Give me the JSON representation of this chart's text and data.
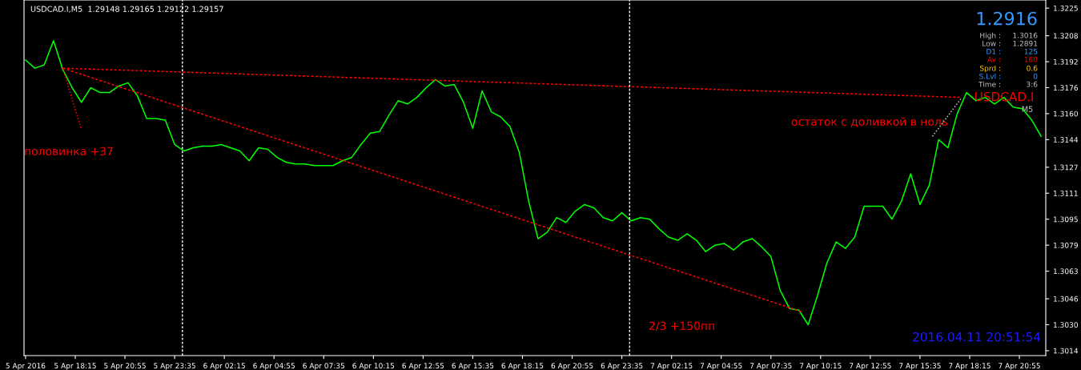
{
  "chart_data": {
    "type": "line",
    "title": "USDCAD.I,M5  1.29148 1.29165 1.29122 1.29157",
    "x": [
      "2016-04-05T15:35",
      "2016-04-05T16:05",
      "2016-04-05T16:35",
      "2016-04-05T17:05",
      "2016-04-05T17:35",
      "2016-04-05T18:05",
      "2016-04-05T18:35",
      "2016-04-05T19:05",
      "2016-04-05T19:35",
      "2016-04-05T20:05",
      "2016-04-05T20:35",
      "2016-04-05T21:05",
      "2016-04-05T21:35",
      "2016-04-05T22:05",
      "2016-04-05T22:35",
      "2016-04-05T23:05",
      "2016-04-05T23:35",
      "2016-04-06T00:05",
      "2016-04-06T00:35",
      "2016-04-06T01:05",
      "2016-04-06T01:35",
      "2016-04-06T02:05",
      "2016-04-06T02:35",
      "2016-04-06T03:05",
      "2016-04-06T03:35",
      "2016-04-06T04:05",
      "2016-04-06T04:35",
      "2016-04-06T05:05",
      "2016-04-06T05:35",
      "2016-04-06T06:05",
      "2016-04-06T06:35",
      "2016-04-06T07:05",
      "2016-04-06T07:35",
      "2016-04-06T08:05",
      "2016-04-06T08:35",
      "2016-04-06T09:05",
      "2016-04-06T09:35",
      "2016-04-06T10:05",
      "2016-04-06T10:35",
      "2016-04-06T11:05",
      "2016-04-06T11:35",
      "2016-04-06T12:05",
      "2016-04-06T12:35",
      "2016-04-06T13:05",
      "2016-04-06T13:35",
      "2016-04-06T14:05",
      "2016-04-06T14:35",
      "2016-04-06T15:05",
      "2016-04-06T15:35",
      "2016-04-06T16:05",
      "2016-04-06T16:35",
      "2016-04-06T17:05",
      "2016-04-06T17:35",
      "2016-04-06T18:05",
      "2016-04-06T18:35",
      "2016-04-06T19:05",
      "2016-04-06T19:35",
      "2016-04-06T20:05",
      "2016-04-06T20:35",
      "2016-04-06T21:05",
      "2016-04-06T21:35",
      "2016-04-06T22:05",
      "2016-04-06T22:35",
      "2016-04-06T23:05",
      "2016-04-06T23:35",
      "2016-04-07T00:05",
      "2016-04-07T00:35",
      "2016-04-07T01:05",
      "2016-04-07T01:35",
      "2016-04-07T02:05",
      "2016-04-07T02:35",
      "2016-04-07T03:05",
      "2016-04-07T03:35",
      "2016-04-07T04:05",
      "2016-04-07T04:35",
      "2016-04-07T05:05",
      "2016-04-07T05:35",
      "2016-04-07T06:05",
      "2016-04-07T06:35",
      "2016-04-07T07:05",
      "2016-04-07T07:35",
      "2016-04-07T08:05",
      "2016-04-07T08:35",
      "2016-04-07T09:05",
      "2016-04-07T09:35",
      "2016-04-07T10:05",
      "2016-04-07T10:35",
      "2016-04-07T11:05",
      "2016-04-07T11:35",
      "2016-04-07T12:05",
      "2016-04-07T12:35",
      "2016-04-07T13:05",
      "2016-04-07T13:35",
      "2016-04-07T14:05",
      "2016-04-07T14:35",
      "2016-04-07T15:05",
      "2016-04-07T15:35",
      "2016-04-07T16:05",
      "2016-04-07T16:35",
      "2016-04-07T17:05",
      "2016-04-07T17:35",
      "2016-04-07T18:05",
      "2016-04-07T18:35",
      "2016-04-07T19:05",
      "2016-04-07T19:35",
      "2016-04-07T20:05",
      "2016-04-07T20:35",
      "2016-04-07T21:05",
      "2016-04-07T21:35",
      "2016-04-07T22:05"
    ],
    "series": [
      {
        "color": "#00ff00",
        "values": [
          1.3193,
          1.3188,
          1.319,
          1.3205,
          1.3187,
          1.3176,
          1.3167,
          1.3176,
          1.3173,
          1.3173,
          1.3177,
          1.3179,
          1.3171,
          1.3157,
          1.3157,
          1.3156,
          1.3141,
          1.3137,
          1.3139,
          1.314,
          1.314,
          1.3141,
          1.3139,
          1.3137,
          1.3131,
          1.3139,
          1.3138,
          1.3133,
          1.313,
          1.3129,
          1.3129,
          1.3128,
          1.3128,
          1.3128,
          1.3131,
          1.3133,
          1.3141,
          1.3148,
          1.3149,
          1.3159,
          1.3168,
          1.3166,
          1.317,
          1.3176,
          1.3181,
          1.3177,
          1.3178,
          1.3167,
          1.3151,
          1.3174,
          1.3161,
          1.3158,
          1.3152,
          1.3136,
          1.3106,
          1.3083,
          1.3087,
          1.3096,
          1.3093,
          1.31,
          1.3104,
          1.3102,
          1.3096,
          1.3094,
          1.3099,
          1.3094,
          1.3096,
          1.3095,
          1.3089,
          1.3084,
          1.3082,
          1.3086,
          1.3082,
          1.3075,
          1.3079,
          1.308,
          1.3076,
          1.3081,
          1.3083,
          1.3078,
          1.3072,
          1.3051,
          1.304,
          1.3039,
          1.303,
          1.3048,
          1.3068,
          1.3081,
          1.3077,
          1.3084,
          1.3103,
          1.3103,
          1.3103,
          1.3095,
          1.3106,
          1.3123,
          1.3104,
          1.3116,
          1.3144,
          1.3139,
          1.316,
          1.3173,
          1.3168,
          1.317,
          1.3166,
          1.317,
          1.3164,
          1.3163,
          1.3156,
          1.3146
        ]
      },
      {
        "type": "line",
        "color": "#ff0000",
        "line_style": "dashed",
        "x": [
          "2016-04-05T17:35",
          "2016-04-07T17:50"
        ],
        "values": [
          1.3188,
          1.317
        ]
      },
      {
        "type": "line",
        "color": "#ff0000",
        "line_style": "dashed",
        "x": [
          "2016-04-05T17:35",
          "2016-04-07T09:15"
        ],
        "values": [
          1.3188,
          1.3038
        ]
      },
      {
        "type": "line",
        "color": "#ff0000",
        "line_style": "dotted",
        "x": [
          "2016-04-05T17:35",
          "2016-04-05T18:35"
        ],
        "values": [
          1.3188,
          1.315
        ]
      },
      {
        "type": "line",
        "color": "#c0c0c0",
        "line_style": "dotted",
        "x": [
          "2016-04-07T16:15",
          "2016-04-07T17:50"
        ],
        "values": [
          1.3146,
          1.317
        ]
      }
    ],
    "xlim": [
      "2016-04-05T15:30",
      "2016-04-07T22:20"
    ],
    "xticks": [
      {
        "value": "2016-04-05T15:35",
        "label": "5 Apr 2016"
      },
      {
        "value": "2016-04-05T18:15",
        "label": "5 Apr 18:15"
      },
      {
        "value": "2016-04-05T20:55",
        "label": "5 Apr 20:55"
      },
      {
        "value": "2016-04-05T23:35",
        "label": "5 Apr 23:35"
      },
      {
        "value": "2016-04-06T02:15",
        "label": "6 Apr 02:15"
      },
      {
        "value": "2016-04-06T04:55",
        "label": "6 Apr 04:55"
      },
      {
        "value": "2016-04-06T07:35",
        "label": "6 Apr 07:35"
      },
      {
        "value": "2016-04-06T10:15",
        "label": "6 Apr 10:15"
      },
      {
        "value": "2016-04-06T12:55",
        "label": "6 Apr 12:55"
      },
      {
        "value": "2016-04-06T15:35",
        "label": "6 Apr 15:35"
      },
      {
        "value": "2016-04-06T18:15",
        "label": "6 Apr 18:15"
      },
      {
        "value": "2016-04-06T20:55",
        "label": "6 Apr 20:55"
      },
      {
        "value": "2016-04-06T23:35",
        "label": "6 Apr 23:35"
      },
      {
        "value": "2016-04-07T02:15",
        "label": "7 Apr 02:15"
      },
      {
        "value": "2016-04-07T04:55",
        "label": "7 Apr 04:55"
      },
      {
        "value": "2016-04-07T07:35",
        "label": "7 Apr 07:35"
      },
      {
        "value": "2016-04-07T10:15",
        "label": "7 Apr 10:15"
      },
      {
        "value": "2016-04-07T12:55",
        "label": "7 Apr 12:55"
      },
      {
        "value": "2016-04-07T15:35",
        "label": "7 Apr 15:35"
      },
      {
        "value": "2016-04-07T18:15",
        "label": "7 Apr 18:15"
      },
      {
        "value": "2016-04-07T20:55",
        "label": "7 Apr 20:55"
      }
    ],
    "ylim": [
      1.3011,
      1.323
    ],
    "yticks": [
      {
        "value": 1.3225,
        "label": "1.3225"
      },
      {
        "value": 1.3208,
        "label": "1.3208"
      },
      {
        "value": 1.3192,
        "label": "1.3192"
      },
      {
        "value": 1.3176,
        "label": "1.3176"
      },
      {
        "value": 1.316,
        "label": "1.3160"
      },
      {
        "value": 1.3144,
        "label": "1.3144"
      },
      {
        "value": 1.3127,
        "label": "1.3127"
      },
      {
        "value": 1.3111,
        "label": "1.3111"
      },
      {
        "value": 1.3095,
        "label": "1.3095"
      },
      {
        "value": 1.3079,
        "label": "1.3079"
      },
      {
        "value": 1.3063,
        "label": "1.3063"
      },
      {
        "value": 1.3046,
        "label": "1.3046"
      },
      {
        "value": 1.303,
        "label": "1.3030"
      },
      {
        "value": 1.3014,
        "label": "1.3014"
      }
    ],
    "ref_lines": [
      {
        "axis": "x",
        "value": "2016-04-06T00:00",
        "color": "#ffffff",
        "line_style": "dashed"
      },
      {
        "axis": "x",
        "value": "2016-04-07T00:00",
        "color": "#ffffff",
        "line_style": "dashed"
      }
    ],
    "annotations": [
      "половинка +37",
      "остаток с доливкой в ноль",
      "2/3 +150пп",
      "1.2916",
      "High :",
      "1.3016",
      "Low :",
      "1.2891",
      "D1 :",
      "125",
      "Av :",
      "160",
      "Sprd :",
      "0.6",
      "S.Lvl :",
      "0",
      "Time :",
      "3:6",
      "USDCAD.I",
      "M5",
      "2016.04.11 20:51:54"
    ]
  }
}
